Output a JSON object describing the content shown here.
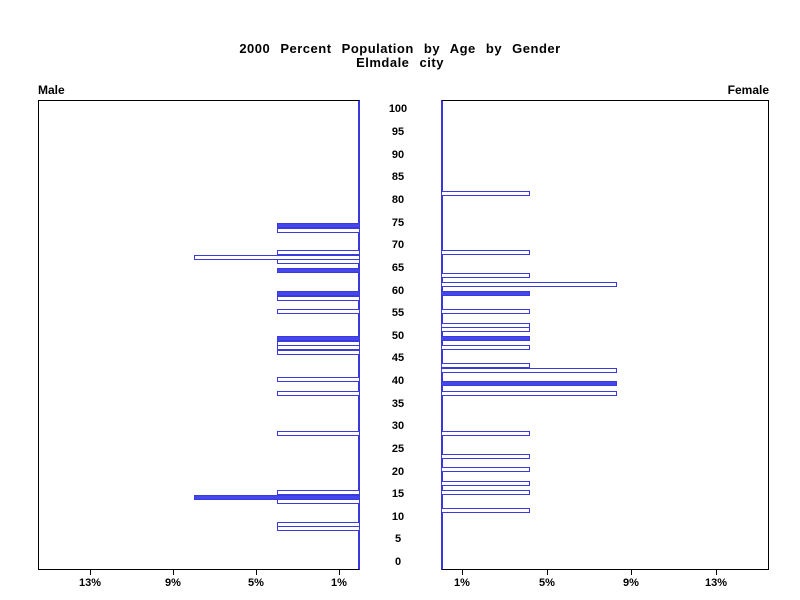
{
  "title": {
    "line1": "2000 Percent Population by Age by Gender",
    "line2": "Elmdale city"
  },
  "panels": {
    "male_label": "Male",
    "female_label": "Female"
  },
  "colors": {
    "bar_fill": "#4646ee",
    "bar_stroke": "#3b3bdc",
    "inner_axis": "#3838dd",
    "frame": "#000000"
  },
  "chart_data": {
    "type": "bar",
    "subtype": "population-pyramid",
    "title": "2000 Percent Population by Age by Gender",
    "subtitle": "Elmdale city",
    "age_axis": {
      "min": 0,
      "max": 100,
      "step": 5
    },
    "percent_axis": {
      "max": 15.5,
      "ticks": [
        1,
        5,
        9,
        13
      ],
      "tick_labels": [
        "1%",
        "5%",
        "9%",
        "13%"
      ]
    },
    "series": [
      {
        "name": "Male",
        "side": "left",
        "bars": [
          {
            "age": 74,
            "pct": 4.0,
            "filled": true
          },
          {
            "age": 73,
            "pct": 4.0,
            "filled": false
          },
          {
            "age": 68,
            "pct": 4.0,
            "filled": false
          },
          {
            "age": 67,
            "pct": 8.0,
            "filled": false
          },
          {
            "age": 66,
            "pct": 4.0,
            "filled": false
          },
          {
            "age": 64,
            "pct": 4.0,
            "filled": true
          },
          {
            "age": 59,
            "pct": 4.0,
            "filled": true
          },
          {
            "age": 58,
            "pct": 4.0,
            "filled": false
          },
          {
            "age": 55,
            "pct": 4.0,
            "filled": false
          },
          {
            "age": 49,
            "pct": 4.0,
            "filled": true
          },
          {
            "age": 48,
            "pct": 4.0,
            "filled": false
          },
          {
            "age": 47,
            "pct": 4.0,
            "filled": false
          },
          {
            "age": 46,
            "pct": 4.0,
            "filled": false
          },
          {
            "age": 40,
            "pct": 4.0,
            "filled": false
          },
          {
            "age": 37,
            "pct": 4.0,
            "filled": false
          },
          {
            "age": 28,
            "pct": 4.0,
            "filled": false
          },
          {
            "age": 15,
            "pct": 4.0,
            "filled": false
          },
          {
            "age": 14,
            "pct": 8.0,
            "filled": true
          },
          {
            "age": 13,
            "pct": 4.0,
            "filled": false
          },
          {
            "age": 8,
            "pct": 4.0,
            "filled": false
          },
          {
            "age": 7,
            "pct": 4.0,
            "filled": false
          }
        ]
      },
      {
        "name": "Female",
        "side": "right",
        "bars": [
          {
            "age": 81,
            "pct": 4.2,
            "filled": false
          },
          {
            "age": 68,
            "pct": 4.2,
            "filled": false
          },
          {
            "age": 63,
            "pct": 4.2,
            "filled": false
          },
          {
            "age": 61,
            "pct": 8.3,
            "filled": false
          },
          {
            "age": 59,
            "pct": 4.2,
            "filled": true
          },
          {
            "age": 55,
            "pct": 4.2,
            "filled": false
          },
          {
            "age": 52,
            "pct": 4.2,
            "filled": false
          },
          {
            "age": 51,
            "pct": 4.2,
            "filled": false
          },
          {
            "age": 49,
            "pct": 4.2,
            "filled": true
          },
          {
            "age": 47,
            "pct": 4.2,
            "filled": false
          },
          {
            "age": 43,
            "pct": 4.2,
            "filled": false
          },
          {
            "age": 42,
            "pct": 8.3,
            "filled": false
          },
          {
            "age": 39,
            "pct": 8.3,
            "filled": true
          },
          {
            "age": 37,
            "pct": 8.3,
            "filled": false
          },
          {
            "age": 28,
            "pct": 4.2,
            "filled": false
          },
          {
            "age": 23,
            "pct": 4.2,
            "filled": false
          },
          {
            "age": 20,
            "pct": 4.2,
            "filled": false
          },
          {
            "age": 17,
            "pct": 4.2,
            "filled": false
          },
          {
            "age": 15,
            "pct": 4.2,
            "filled": false
          },
          {
            "age": 11,
            "pct": 4.2,
            "filled": false
          }
        ]
      }
    ]
  }
}
